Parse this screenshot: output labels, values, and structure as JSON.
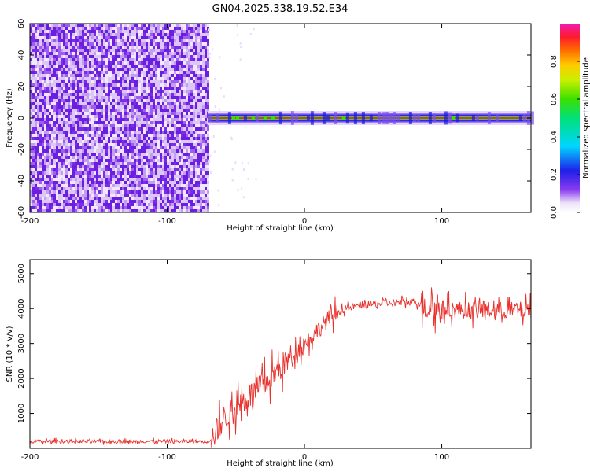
{
  "title": "GN04.2025.338.19.52.E34",
  "chart_data": [
    {
      "type": "heatmap",
      "name": "spectrogram",
      "xlabel": "Height of straight line (km)",
      "ylabel": "Frequency (Hz)",
      "xlim": [
        -200,
        165
      ],
      "ylim": [
        -60,
        60
      ],
      "xticks": [
        -200,
        -100,
        0,
        100
      ],
      "yticks": [
        -60,
        -40,
        -20,
        0,
        20,
        40,
        60
      ],
      "noise_region_x": [
        -200,
        -70
      ],
      "signal_region_x": [
        -70,
        165
      ],
      "signal_frequency_hz": 0,
      "colorbar": {
        "label": "Normalized spectral amplitude",
        "range": [
          0,
          1
        ],
        "ticks": [
          0.0,
          0.2,
          0.4,
          0.6,
          0.8
        ],
        "tick_labels": [
          "0.0",
          "0.2",
          "0.4",
          "0.6",
          "0.8"
        ]
      }
    },
    {
      "type": "line",
      "name": "snr",
      "xlabel": "Height of straight line (km)",
      "ylabel": "SNR (10 * v/v)",
      "xlim": [
        -200,
        165
      ],
      "ylim": [
        0,
        5400
      ],
      "xticks": [
        -200,
        -100,
        0,
        100
      ],
      "yticks": [
        1000,
        2000,
        3000,
        4000,
        5000
      ],
      "color": "#e8322e",
      "series": {
        "x": [
          -200,
          -150,
          -100,
          -70,
          -67,
          -60,
          -50,
          -40,
          -30,
          -20,
          -10,
          0,
          10,
          20,
          30,
          40,
          60,
          80,
          88,
          100,
          120,
          140,
          165
        ],
        "y": [
          200,
          200,
          200,
          200,
          300,
          800,
          1200,
          1500,
          1800,
          2200,
          2600,
          3000,
          3400,
          3800,
          4000,
          4100,
          4150,
          4200,
          4100,
          4000,
          3950,
          3950,
          3950
        ]
      }
    }
  ]
}
